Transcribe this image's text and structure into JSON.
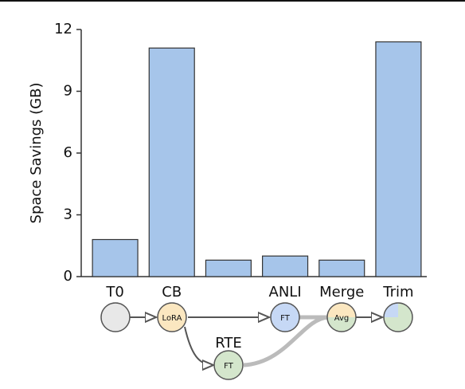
{
  "chart_data": {
    "type": "bar",
    "y_label": "Space Savings (GB)",
    "categories": [
      "T0",
      "CB",
      null,
      "ANLI",
      "Merge",
      "Trim"
    ],
    "values": [
      1.8,
      11.1,
      0.8,
      1.0,
      0.8,
      11.4
    ],
    "color": "#a6c5ea",
    "ylim": [
      0,
      12
    ],
    "yticks": [
      0,
      3,
      6,
      9,
      12
    ]
  },
  "diagram": {
    "nodes": [
      "LoRA",
      "FT",
      "Avg",
      "FT"
    ],
    "side_label": "RTE"
  }
}
